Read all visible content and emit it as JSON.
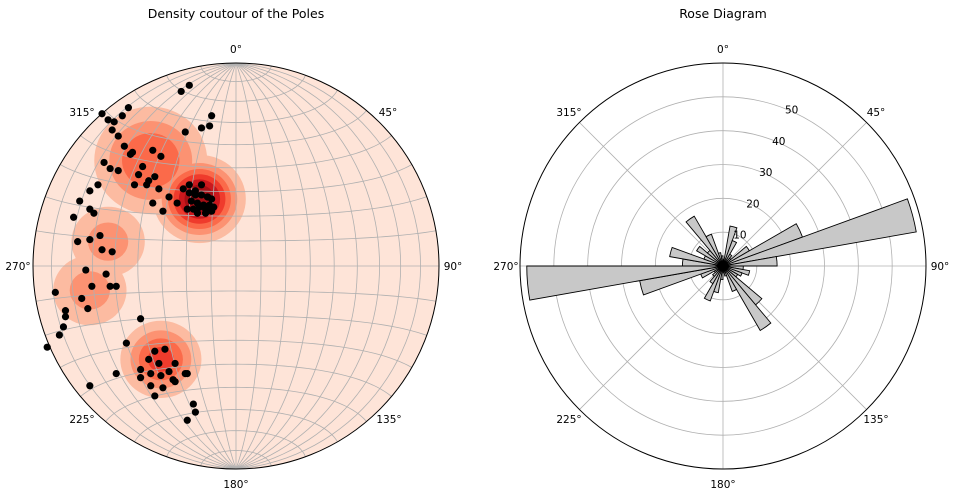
{
  "chart_data": [
    {
      "type": "scatter",
      "projection": "stereonet",
      "title": "Density coutour of the Poles",
      "direction_labels": [
        "0°",
        "45°",
        "90°",
        "135°",
        "180°",
        "225°",
        "270°",
        "315°"
      ],
      "grid": true,
      "marker_color": "#000000",
      "density_colormap": [
        "#fee4d8",
        "#fcbba1",
        "#fc9272",
        "#fb6a4a",
        "#ef3b2c",
        "#cb181d",
        "#a50f15"
      ],
      "density_centers": [
        {
          "x": -0.18,
          "y": 0.33,
          "weight": 1.0,
          "spread": 0.07
        },
        {
          "x": -0.42,
          "y": 0.52,
          "weight": 0.55,
          "spread": 0.1
        },
        {
          "x": -0.63,
          "y": 0.12,
          "weight": 0.3,
          "spread": 0.08
        },
        {
          "x": -0.72,
          "y": -0.12,
          "weight": 0.3,
          "spread": 0.08
        },
        {
          "x": -0.37,
          "y": -0.46,
          "weight": 0.6,
          "spread": 0.07
        }
      ],
      "x": [
        -0.26,
        -0.23,
        -0.2,
        -0.17,
        -0.14,
        -0.12,
        -0.22,
        -0.19,
        -0.16,
        -0.13,
        -0.24,
        -0.21,
        -0.18,
        -0.15,
        -0.11,
        -0.2,
        -0.17,
        -0.14,
        -0.23,
        -0.19,
        -0.15,
        -0.12,
        -0.29,
        -0.33,
        -0.36,
        -0.38,
        -0.41,
        -0.43,
        -0.46,
        -0.48,
        -0.5,
        -0.52,
        -0.55,
        -0.58,
        -0.61,
        -0.63,
        -0.66,
        -0.6,
        -0.56,
        -0.53,
        -0.44,
        -0.4,
        -0.37,
        -0.41,
        -0.27,
        -0.23,
        -0.17,
        -0.13,
        -0.12,
        -0.25,
        -0.51,
        -0.58,
        -0.62,
        -0.65,
        -0.68,
        -0.72,
        -0.77,
        -0.8,
        -0.78,
        -0.72,
        -0.67,
        -0.7,
        -0.72,
        -0.66,
        -0.61,
        -0.62,
        -0.64,
        -0.59,
        -0.47,
        -0.54,
        -0.76,
        -0.84,
        -0.87,
        -0.93,
        -0.89,
        -0.74,
        -0.71,
        -0.73,
        -0.84,
        -0.85,
        -0.35,
        -0.4,
        -0.43,
        -0.38,
        -0.33,
        -0.3,
        -0.42,
        -0.37,
        -0.31,
        -0.47,
        -0.42,
        -0.36,
        -0.3,
        -0.24,
        -0.4,
        -0.21,
        -0.2,
        -0.24,
        -0.25,
        -0.47,
        -0.59,
        -0.72
      ],
      "y": [
        0.38,
        0.36,
        0.37,
        0.35,
        0.34,
        0.33,
        0.32,
        0.31,
        0.3,
        0.3,
        0.28,
        0.28,
        0.29,
        0.28,
        0.29,
        0.35,
        0.4,
        0.34,
        0.4,
        0.26,
        0.26,
        0.27,
        0.31,
        0.34,
        0.27,
        0.38,
        0.31,
        0.42,
        0.49,
        0.45,
        0.4,
        0.55,
        0.59,
        0.64,
        0.67,
        0.72,
        0.75,
        0.71,
        0.74,
        0.78,
        0.4,
        0.44,
        0.54,
        0.57,
        0.86,
        0.89,
        0.68,
        0.69,
        0.74,
        0.66,
        0.56,
        0.47,
        0.48,
        0.51,
        0.4,
        0.37,
        0.32,
        0.24,
        0.12,
        0.13,
        0.15,
        0.26,
        0.28,
        0.08,
        0.07,
        -0.1,
        -0.04,
        -0.1,
        -0.26,
        -0.38,
        -0.16,
        -0.25,
        -0.34,
        -0.4,
        -0.13,
        -0.02,
        -0.1,
        -0.21,
        -0.22,
        -0.3,
        -0.41,
        -0.42,
        -0.46,
        -0.48,
        -0.52,
        -0.48,
        -0.53,
        -0.54,
        -0.56,
        -0.55,
        -0.59,
        -0.6,
        -0.57,
        -0.53,
        -0.64,
        -0.68,
        -0.72,
        -0.76,
        -0.53,
        -0.51,
        -0.53,
        -0.59
      ]
    },
    {
      "type": "polar-bar",
      "title": "Rose Diagram",
      "direction_labels": [
        "0°",
        "45°",
        "90°",
        "135°",
        "180°",
        "225°",
        "270°",
        "315°"
      ],
      "radial_ticks": [
        10,
        20,
        30,
        40,
        50
      ],
      "radial_max": 60,
      "radial_label_angle_deg": 22.5,
      "grid": true,
      "bar_color": "#c8c8c8",
      "edge_color": "#000000",
      "bin_width_deg": 10,
      "bin_centers_deg": [
        5,
        15,
        25,
        35,
        45,
        55,
        65,
        75,
        85,
        95,
        105,
        115,
        125,
        135,
        145,
        155,
        165,
        175,
        185,
        195,
        205,
        215,
        225,
        235,
        245,
        255,
        265,
        275,
        285,
        295,
        305,
        315,
        325,
        335,
        345,
        355
      ],
      "values": [
        2,
        12,
        8,
        4,
        3,
        9,
        25,
        58,
        16,
        6,
        8,
        6,
        5,
        15,
        22,
        8,
        3,
        2,
        4,
        8,
        11,
        6,
        4,
        3,
        7,
        25,
        58,
        12,
        16,
        6,
        9,
        6,
        17,
        10,
        4,
        3
      ]
    }
  ]
}
